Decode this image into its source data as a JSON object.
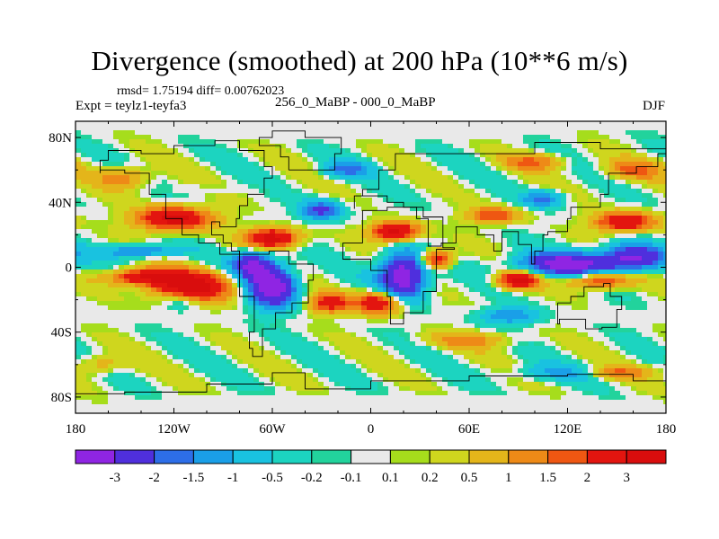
{
  "chart": {
    "title": "Divergence (smoothed) at 200 hPa (10**6 m/s)",
    "stats_text": "rmsd= 1.75194 diff= 0.00762023",
    "left_label": "Expt = teylz1-teyfa3",
    "center_label": "256_0_MaBP - 000_0_MaBP",
    "right_label": "DJF"
  },
  "chart_data": {
    "type": "heatmap",
    "title": "Divergence (smoothed) at 200 hPa (10**6 m/s)",
    "units": "10**6 m/s",
    "x_range": [
      -180,
      180
    ],
    "y_range": [
      -90,
      90
    ],
    "x_ticks": [
      {
        "value": -180,
        "label": "180"
      },
      {
        "value": -120,
        "label": "120W"
      },
      {
        "value": -60,
        "label": "60W"
      },
      {
        "value": 0,
        "label": "0"
      },
      {
        "value": 60,
        "label": "60E"
      },
      {
        "value": 120,
        "label": "120E"
      },
      {
        "value": 180,
        "label": "180"
      }
    ],
    "y_ticks": [
      {
        "value": 80,
        "label": "80N"
      },
      {
        "value": 40,
        "label": "40N"
      },
      {
        "value": 0,
        "label": "0"
      },
      {
        "value": -40,
        "label": "40S"
      },
      {
        "value": -80,
        "label": "80S"
      }
    ],
    "colorbar": {
      "levels": [
        "-3",
        "-2",
        "-1.5",
        "-1",
        "-0.5",
        "-0.2",
        "-0.1",
        "0.1",
        "0.2",
        "0.5",
        "1",
        "1.5",
        "2",
        "3"
      ],
      "colors": [
        "#8f25e3",
        "#4f2fdd",
        "#2d6ee8",
        "#1a9fe8",
        "#19c2e0",
        "#1cd4c0",
        "#22d39c",
        "#e9e9e9",
        "#a6dd1c",
        "#cfd61e",
        "#e4b51a",
        "#ee8a17",
        "#ef5712",
        "#e3150f",
        "#d90d0d"
      ]
    },
    "features": [
      {
        "type": "neg",
        "lon": -60,
        "lat": -12,
        "rlon": 14,
        "rlat": 12,
        "amp": 4.0
      },
      {
        "type": "neg",
        "lon": -72,
        "lat": 2,
        "rlon": 12,
        "rlat": 8,
        "amp": 3.0
      },
      {
        "type": "neg",
        "lon": 20,
        "lat": -5,
        "rlon": 14,
        "rlat": 14,
        "amp": 4.0
      },
      {
        "type": "neg",
        "lon": 120,
        "lat": 2,
        "rlon": 30,
        "rlat": 7,
        "amp": 3.5
      },
      {
        "type": "neg",
        "lon": 160,
        "lat": 6,
        "rlon": 18,
        "rlat": 8,
        "amp": 3.0
      },
      {
        "type": "neg",
        "lon": -30,
        "lat": 35,
        "rlon": 12,
        "rlat": 6,
        "amp": 2.2
      },
      {
        "type": "neg",
        "lon": -140,
        "lat": 10,
        "rlon": 22,
        "rlat": 4,
        "amp": 1.8
      },
      {
        "type": "neg",
        "lon": -115,
        "lat": -20,
        "rlon": 12,
        "rlat": 6,
        "amp": 1.2
      },
      {
        "type": "neg",
        "lon": 105,
        "lat": 42,
        "rlon": 12,
        "rlat": 5,
        "amp": 1.8
      },
      {
        "type": "neg",
        "lon": 85,
        "lat": -30,
        "rlon": 18,
        "rlat": 5,
        "amp": 1.5
      },
      {
        "type": "neg",
        "lon": -15,
        "lat": 60,
        "rlon": 15,
        "rlat": 5,
        "amp": 1.5
      },
      {
        "type": "neg",
        "lon": 115,
        "lat": -65,
        "rlon": 30,
        "rlat": 5,
        "amp": 1.0
      },
      {
        "type": "pos",
        "lon": -110,
        "lat": -12,
        "rlon": 22,
        "rlat": 9,
        "amp": 4.0
      },
      {
        "type": "pos",
        "lon": -140,
        "lat": -6,
        "rlon": 20,
        "rlat": 5,
        "amp": 3.0
      },
      {
        "type": "pos",
        "lon": -120,
        "lat": 30,
        "rlon": 22,
        "rlat": 7,
        "amp": 3.5
      },
      {
        "type": "pos",
        "lon": -60,
        "lat": 18,
        "rlon": 16,
        "rlat": 6,
        "amp": 3.5
      },
      {
        "type": "pos",
        "lon": 15,
        "lat": 22,
        "rlon": 14,
        "rlat": 6,
        "amp": 3.5
      },
      {
        "type": "pos",
        "lon": 40,
        "lat": 5,
        "rlon": 10,
        "rlat": 6,
        "amp": 2.8
      },
      {
        "type": "pos",
        "lon": 5,
        "lat": -22,
        "rlon": 14,
        "rlat": 7,
        "amp": 3.0
      },
      {
        "type": "pos",
        "lon": 90,
        "lat": -8,
        "rlon": 12,
        "rlat": 5,
        "amp": 3.5
      },
      {
        "type": "pos",
        "lon": 140,
        "lat": -8,
        "rlon": 18,
        "rlat": 5,
        "amp": 2.5
      },
      {
        "type": "pos",
        "lon": 155,
        "lat": 28,
        "rlon": 18,
        "rlat": 6,
        "amp": 3.0
      },
      {
        "type": "pos",
        "lon": 75,
        "lat": 32,
        "rlon": 16,
        "rlat": 5,
        "amp": 2.0
      },
      {
        "type": "pos",
        "lon": -25,
        "lat": -22,
        "rlon": 12,
        "rlat": 6,
        "amp": 2.5
      },
      {
        "type": "pos",
        "lon": -150,
        "lat": 55,
        "rlon": 16,
        "rlat": 7,
        "amp": 1.5
      },
      {
        "type": "pos",
        "lon": 100,
        "lat": 65,
        "rlon": 18,
        "rlat": 5,
        "amp": 1.5
      },
      {
        "type": "pos",
        "lon": 60,
        "lat": -45,
        "rlon": 25,
        "rlat": 5,
        "amp": 1.2
      },
      {
        "type": "pos",
        "lon": -165,
        "lat": -60,
        "rlon": 15,
        "rlat": 6,
        "amp": 1.0
      },
      {
        "type": "pos",
        "lon": 150,
        "lat": -65,
        "rlon": 20,
        "rlat": 4,
        "amp": 1.5
      },
      {
        "type": "pos",
        "lon": 160,
        "lat": 60,
        "rlon": 18,
        "rlat": 6,
        "amp": 1.5
      }
    ],
    "zero_bands": [
      {
        "lon": -100,
        "lat": 48,
        "rlon": 40,
        "rlat": 3
      },
      {
        "lon": 160,
        "lat": -32,
        "rlon": 25,
        "rlat": 3
      },
      {
        "lon": -10,
        "lat": 82,
        "rlon": 120,
        "rlat": 6
      },
      {
        "lon": 0,
        "lat": -82,
        "rlon": 160,
        "rlat": 5
      }
    ],
    "continents": [
      {
        "name": "north-america",
        "lonlat": [
          [
            -165,
            66
          ],
          [
            -160,
            72
          ],
          [
            -140,
            70
          ],
          [
            -120,
            75
          ],
          [
            -95,
            78
          ],
          [
            -80,
            72
          ],
          [
            -65,
            62
          ],
          [
            -60,
            55
          ],
          [
            -65,
            45
          ],
          [
            -75,
            38
          ],
          [
            -80,
            30
          ],
          [
            -82,
            25
          ],
          [
            -92,
            28
          ],
          [
            -97,
            20
          ],
          [
            -90,
            15
          ],
          [
            -85,
            10
          ],
          [
            -80,
            8
          ],
          [
            -92,
            15
          ],
          [
            -105,
            20
          ],
          [
            -115,
            30
          ],
          [
            -125,
            45
          ],
          [
            -135,
            58
          ],
          [
            -150,
            60
          ],
          [
            -165,
            58
          ],
          [
            -165,
            66
          ]
        ]
      },
      {
        "name": "greenland",
        "lonlat": [
          [
            -50,
            60
          ],
          [
            -42,
            60
          ],
          [
            -22,
            70
          ],
          [
            -18,
            80
          ],
          [
            -40,
            84
          ],
          [
            -60,
            80
          ],
          [
            -68,
            75
          ],
          [
            -55,
            68
          ],
          [
            -50,
            60
          ]
        ]
      },
      {
        "name": "south-america",
        "lonlat": [
          [
            -80,
            8
          ],
          [
            -62,
            10
          ],
          [
            -50,
            2
          ],
          [
            -35,
            -8
          ],
          [
            -38,
            -22
          ],
          [
            -48,
            -28
          ],
          [
            -58,
            -38
          ],
          [
            -66,
            -55
          ],
          [
            -72,
            -50
          ],
          [
            -74,
            -40
          ],
          [
            -71,
            -18
          ],
          [
            -80,
            -5
          ],
          [
            -80,
            8
          ]
        ]
      },
      {
        "name": "africa",
        "lonlat": [
          [
            -17,
            15
          ],
          [
            -5,
            35
          ],
          [
            10,
            37
          ],
          [
            32,
            31
          ],
          [
            44,
            12
          ],
          [
            51,
            11
          ],
          [
            40,
            -5
          ],
          [
            40,
            -15
          ],
          [
            32,
            -28
          ],
          [
            20,
            -35
          ],
          [
            12,
            -18
          ],
          [
            10,
            -2
          ],
          [
            0,
            5
          ],
          [
            -10,
            5
          ],
          [
            -17,
            15
          ]
        ]
      },
      {
        "name": "eurasia",
        "lonlat": [
          [
            -10,
            36
          ],
          [
            -10,
            44
          ],
          [
            -5,
            48
          ],
          [
            5,
            52
          ],
          [
            5,
            60
          ],
          [
            15,
            70
          ],
          [
            30,
            70
          ],
          [
            60,
            70
          ],
          [
            100,
            77
          ],
          [
            140,
            73
          ],
          [
            180,
            70
          ],
          [
            175,
            62
          ],
          [
            162,
            58
          ],
          [
            145,
            45
          ],
          [
            140,
            37
          ],
          [
            122,
            30
          ],
          [
            120,
            22
          ],
          [
            108,
            20
          ],
          [
            105,
            10
          ],
          [
            100,
            2
          ],
          [
            98,
            14
          ],
          [
            90,
            22
          ],
          [
            80,
            10
          ],
          [
            75,
            20
          ],
          [
            65,
            25
          ],
          [
            58,
            25
          ],
          [
            52,
            15
          ],
          [
            43,
            13
          ],
          [
            35,
            30
          ],
          [
            28,
            37
          ],
          [
            20,
            40
          ],
          [
            10,
            44
          ],
          [
            -10,
            36
          ]
        ]
      },
      {
        "name": "australia",
        "lonlat": [
          [
            114,
            -22
          ],
          [
            122,
            -18
          ],
          [
            130,
            -12
          ],
          [
            137,
            -12
          ],
          [
            142,
            -10
          ],
          [
            146,
            -18
          ],
          [
            153,
            -26
          ],
          [
            150,
            -37
          ],
          [
            141,
            -38
          ],
          [
            131,
            -32
          ],
          [
            115,
            -35
          ],
          [
            114,
            -22
          ]
        ]
      },
      {
        "name": "antarctica",
        "lonlat": [
          [
            -180,
            -78
          ],
          [
            -150,
            -77
          ],
          [
            -100,
            -72
          ],
          [
            -60,
            -65
          ],
          [
            -40,
            -75
          ],
          [
            0,
            -70
          ],
          [
            60,
            -67
          ],
          [
            120,
            -66
          ],
          [
            160,
            -70
          ],
          [
            180,
            -78
          ]
        ]
      }
    ]
  }
}
